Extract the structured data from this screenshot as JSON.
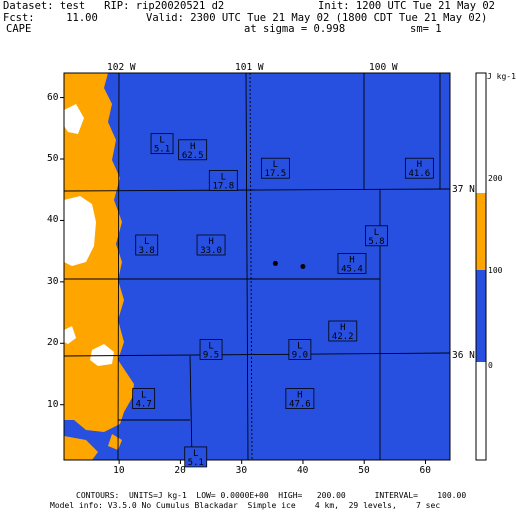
{
  "header": {
    "dataset": "Dataset: test   RIP: rip20020521 d2",
    "init": "Init: 1200 UTC Tue 21 May 02",
    "fcst": "Fcst:     11.00",
    "valid": "Valid: 2300 UTC Tue 21 May 02 (1800 CDT Tue 21 May 02)",
    "field": "CAPE",
    "sigma": "at sigma = 0.998",
    "sm": "sm= 1"
  },
  "top_labels": [
    "102 W",
    "101 W",
    "100 W"
  ],
  "right_labels": [
    "37 N",
    "36 N"
  ],
  "y_ticks": [
    "10",
    "20",
    "30",
    "40",
    "50",
    "60"
  ],
  "x_ticks": [
    "10",
    "20",
    "30",
    "40",
    "50",
    "60"
  ],
  "colorbar": {
    "unit": "J kg-1",
    "levels": [
      "200",
      "100",
      "0"
    ],
    "colors": {
      "high": "#ffffff",
      "mid": "#ffa500",
      "low": "#2850e0"
    }
  },
  "highs_lows": [
    {
      "type": "L",
      "value": "5.1",
      "x": 17,
      "y": 52.5
    },
    {
      "type": "H",
      "value": "62.5",
      "x": 22,
      "y": 51.5
    },
    {
      "type": "L",
      "value": "17.8",
      "x": 27,
      "y": 46.5
    },
    {
      "type": "L",
      "value": "17.5",
      "x": 35.5,
      "y": 48.5
    },
    {
      "type": "H",
      "value": "41.6",
      "x": 59,
      "y": 48.5
    },
    {
      "type": "L",
      "value": "3.8",
      "x": 14.5,
      "y": 36
    },
    {
      "type": "H",
      "value": "33.0",
      "x": 25,
      "y": 36
    },
    {
      "type": "L",
      "value": "5.8",
      "x": 52,
      "y": 37.5
    },
    {
      "type": "H",
      "value": "45.4",
      "x": 48,
      "y": 33
    },
    {
      "type": "H",
      "value": "42.2",
      "x": 46.5,
      "y": 22
    },
    {
      "type": "L",
      "value": "9.5",
      "x": 25,
      "y": 19
    },
    {
      "type": "L",
      "value": "9.0",
      "x": 39.5,
      "y": 19
    },
    {
      "type": "L",
      "value": "4.7",
      "x": 14,
      "y": 11
    },
    {
      "type": "H",
      "value": "47.6",
      "x": 39.5,
      "y": 11
    },
    {
      "type": "L",
      "value": "5.1",
      "x": 22.5,
      "y": 1.5
    }
  ],
  "points": [
    {
      "x": 35.5,
      "y": 33
    },
    {
      "x": 40,
      "y": 32.5
    }
  ],
  "footer": {
    "line1": "CONTOURS:  UNITS=J kg-1  LOW= 0.0000E+00  HIGH=   200.00      INTERVAL=    100.00",
    "line2": "Model info: V3.5.0 No Cumulus Blackadar  Simple ice    4 km,  29 levels,    7 sec"
  }
}
